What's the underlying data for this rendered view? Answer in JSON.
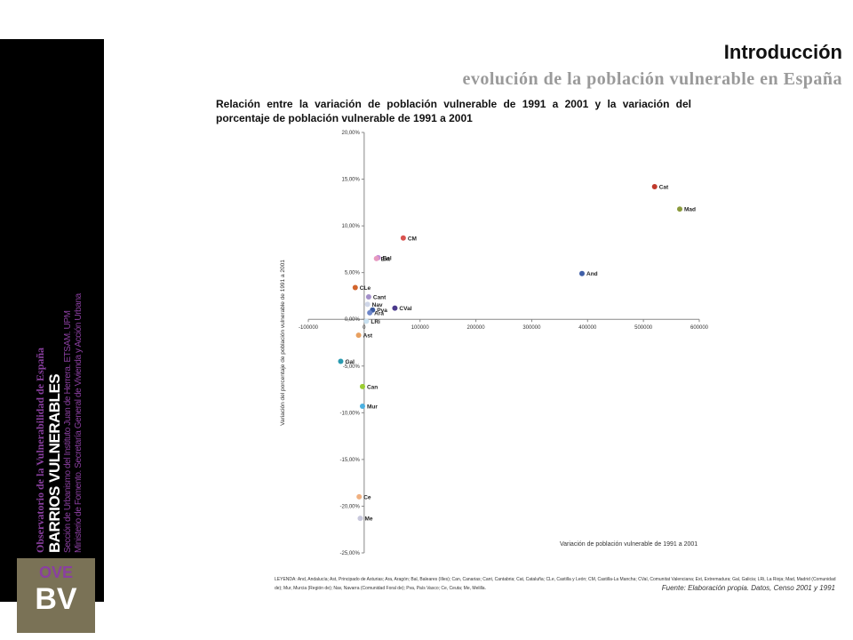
{
  "header": {
    "title": "Introducción",
    "subtitle": "evolución de la población vulnerable en España"
  },
  "sidebar": {
    "line1": "Observatorio de la Vulnerabilidad de España",
    "line2": "BARRIOS VULNERABLES",
    "line3": "Sección de Urbanismo del Instituto Juan de Herrera. ETSAM. UPM",
    "line4": "Ministerio de Fomento. Secretaría General de Vivienda y Acción Urbana",
    "logo_top": "OVE",
    "logo_bottom": "BV"
  },
  "chart_title": "Relación entre la variación de población vulnerable de 1991 a 2001 y la variación del porcentaje de población vulnerable de 1991 a 2001",
  "legend_text": "LEYENDA: And, Andalucía; Ast, Principado de Asturias; Ara, Aragón; Bal, Baleares (Illes); Can, Canarias; Cant, Cantabria; Cat, Cataluña; CLe, Castilla y León; CM, Castilla-La Mancha; CVal, Comunitat Valenciana; Ext, Extremadura; Gal, Galicia; LRi, La Rioja; Mad, Madrid (Comunidad de); Mur, Murcia (Región de); Nav, Navarra (Comunidad Foral de); Pva, País Vasco; Ce, Ceuta; Me, Melilla.",
  "source": "Fuente: Elaboración propia. Datos, Censo 2001 y 1991",
  "chart_data": {
    "type": "scatter",
    "xlabel": "Variación de población vulnerable de 1991 a 2001",
    "ylabel": "Variación del porcentaje de población vulnerable de 1991 a 2001",
    "xlim": [
      -100000,
      600000
    ],
    "ylim": [
      -25,
      20
    ],
    "x_ticks": [
      "-100000",
      "0",
      "100000",
      "200000",
      "300000",
      "400000",
      "500000",
      "600000"
    ],
    "y_ticks": [
      "20,00%",
      "15,00%",
      "10,00%",
      "5,00%",
      "0,00%",
      "-5,00%",
      "-10,00%",
      "-15,00%",
      "-20,00%",
      "-25,00%"
    ],
    "x_tick_values": [
      -100000,
      0,
      100000,
      200000,
      300000,
      400000,
      500000,
      600000
    ],
    "y_tick_values": [
      20,
      15,
      10,
      5,
      0,
      -5,
      -10,
      -15,
      -20,
      -25
    ],
    "points": [
      {
        "label": "Cat",
        "x": 520000,
        "y": 14.2,
        "color": "#c0392b"
      },
      {
        "label": "Mad",
        "x": 565000,
        "y": 11.8,
        "color": "#8a9a3c"
      },
      {
        "label": "CM",
        "x": 70000,
        "y": 8.7,
        "color": "#d9534f"
      },
      {
        "label": "Bal",
        "x": 25000,
        "y": 6.6,
        "color": "#c58bd6"
      },
      {
        "label": "Ext",
        "x": 22000,
        "y": 6.5,
        "color": "#e79ac0"
      },
      {
        "label": "And",
        "x": 390000,
        "y": 4.9,
        "color": "#3f5fa8"
      },
      {
        "label": "CLe",
        "x": -16000,
        "y": 3.4,
        "color": "#d2652d"
      },
      {
        "label": "Cant",
        "x": 8000,
        "y": 2.4,
        "color": "#a28fc9"
      },
      {
        "label": "CVal",
        "x": 55000,
        "y": 1.2,
        "color": "#4b3a8c"
      },
      {
        "label": "Nav",
        "x": 6000,
        "y": 1.6,
        "color": "#cfd6e8"
      },
      {
        "label": "Pva",
        "x": 15000,
        "y": 1.0,
        "color": "#3b5aa0"
      },
      {
        "label": "Ara",
        "x": 10000,
        "y": 0.7,
        "color": "#6d86c9"
      },
      {
        "label": "LRi",
        "x": 4000,
        "y": -0.2,
        "color": "#c8e0f0"
      },
      {
        "label": "Ast",
        "x": -10000,
        "y": -1.7,
        "color": "#e8a060"
      },
      {
        "label": "Gal",
        "x": -42000,
        "y": -4.5,
        "color": "#2a9ab0"
      },
      {
        "label": "Can",
        "x": -3000,
        "y": -7.2,
        "color": "#9acd32"
      },
      {
        "label": "Mur",
        "x": -3000,
        "y": -9.3,
        "color": "#4bb0e0"
      },
      {
        "label": "Ce",
        "x": -9000,
        "y": -19.0,
        "color": "#f0b080"
      },
      {
        "label": "Me",
        "x": -7000,
        "y": -21.3,
        "color": "#c8c8dc"
      }
    ]
  }
}
